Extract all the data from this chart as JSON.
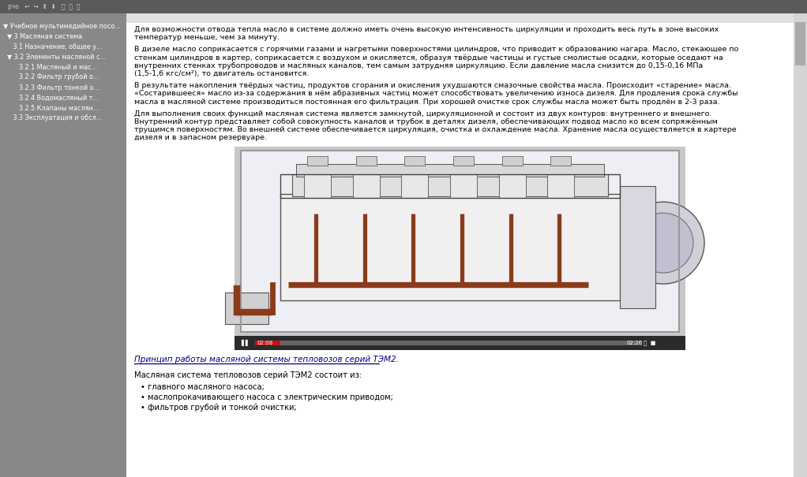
{
  "bg_color": "#c0c0c0",
  "top_bar_color": "#5a5a5a",
  "left_panel_color": "#888888",
  "content_bg": "#ffffff",
  "nav_items": [
    "▼ Учебное мультимедийное посо...",
    "  ▼ 3 Масляная система",
    "     3.1 Назначение, общее у...",
    "  ▼ 3.2 Элементы масляной с...",
    "        3.2.1 Масляный и мас...",
    "        3.2.2 Фильтр грубой о...",
    "        3.2.3 Фильтр тонкой о...",
    "        3.2.4 Водомасляный т...",
    "        3.2.5 Клапаны маслян...",
    "     3.3 Эксплуатация и обсл..."
  ],
  "para1": "Для возможности отвода тепла масло в системе должно иметь очень высокую интенсивность циркуляции и проходить весь путь в зоне высоких температур меньше, чем за минуту.",
  "para2": "В дизеле масло соприкасается с горячими газами и нагретыми поверхностями цилиндров, что приводит к образованию нагара. Масло, стекающее по стенкам цилиндров в картер, соприкасается с воздухом и окисляется, образуя твёрдые частицы и густые смолистые осадки, которые оседают на внутренних стенках трубопроводов и масляных каналов, тем самым затрудняя циркуляцию. Если давление масла снизится до 0,15-0,16 МПа (1,5-1,6 кгс/см²), то двигатель остановится.",
  "para3": "В результате накопления твёрдых частиц, продуктов сгорания и окисления ухудшаются смазочные свойства масла. Происходит «старение» масла. «Состарившееся» масло из-за содержания в нём абразивных частиц может способствовать увеличению износа дизеля. Для продления срока службы масла в масляной системе производиться постоянная его фильтрация. При хорошей очистке срок службы масла может быть продлён в 2-3 раза.",
  "para4": "Для выполнения своих функций масляная система является замкнутой, циркуляционной и состоит из двух контуров: внутреннего и внешнего. Внутренний контур представляет собой совокупность каналов и трубок в деталях дизеля, обеспечивающих подвод масло ко всем сопряжённым трущимся поверхностям. Во внешней системе обеспечивается циркуляция, очистка и охлаждение масла. Хранение масла осуществляется в картере дизеля и в запасном резервуаре.",
  "subtitle": "Принцип работы масляной системы тепловозов серий ТЭМ2.",
  "consist_text": "Масляная система тепловозов серий ТЭМ2 состоит из:",
  "bullet1": "• главного масляного насоса;",
  "bullet2": "• маслопрокачивающего насоса с электрическим приводом;",
  "bullet3": "• фильтров грубой и тонкой очистки;",
  "oil_color": "#8B3A1A",
  "text_color": "#000000",
  "subtitle_color": "#000080"
}
